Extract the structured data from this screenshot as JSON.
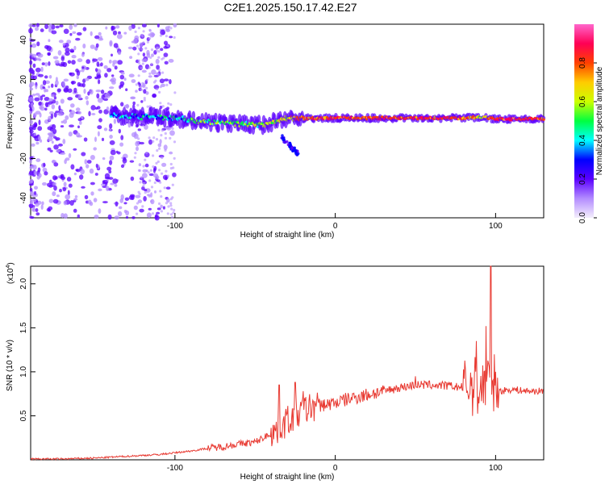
{
  "title": "C2E1.2025.150.17.42.E27",
  "chart_data": [
    {
      "type": "heatmap",
      "xlabel": "Height of straight line (km)",
      "ylabel": "Frequency (Hz)",
      "xlim": [
        -190,
        130
      ],
      "ylim": [
        -50,
        48
      ],
      "xticks": [
        -100,
        0,
        100
      ],
      "yticks": [
        -40,
        -20,
        0,
        20,
        40
      ],
      "colorbar": {
        "label": "Normalized spectral amplitude",
        "range": [
          0,
          1
        ],
        "ticks": [
          0.0,
          0.2,
          0.4,
          0.6,
          0.8
        ],
        "colormap": [
          "#f4eefc",
          "#b38cff",
          "#5b00ff",
          "#0000ff",
          "#00ffff",
          "#00ff40",
          "#ccff00",
          "#ffcc00",
          "#ff4000",
          "#ff0055",
          "#ff66cc"
        ]
      },
      "ridge": [
        {
          "x": -140,
          "f": 2.0,
          "amp": 0.45
        },
        {
          "x": -120,
          "f": 1.0,
          "amp": 0.5
        },
        {
          "x": -100,
          "f": 0.5,
          "amp": 0.55
        },
        {
          "x": -80,
          "f": -1.5,
          "amp": 0.6
        },
        {
          "x": -60,
          "f": -2.5,
          "amp": 0.65
        },
        {
          "x": -45,
          "f": -3.0,
          "amp": 0.7
        },
        {
          "x": -30,
          "f": 0.5,
          "amp": 0.75
        },
        {
          "x": -20,
          "f": 0.3,
          "amp": 0.95
        },
        {
          "x": 0,
          "f": 0.5,
          "amp": 0.95
        },
        {
          "x": 40,
          "f": 0.5,
          "amp": 0.95
        },
        {
          "x": 80,
          "f": 0.5,
          "amp": 0.95
        },
        {
          "x": 92,
          "f": 1.0,
          "amp": 0.7
        },
        {
          "x": 100,
          "f": 0.0,
          "amp": 1.0
        },
        {
          "x": 130,
          "f": 0.0,
          "amp": 0.95
        }
      ]
    },
    {
      "type": "line",
      "xlabel": "Height of straight line (km)",
      "ylabel": "SNR (10 * v/v)",
      "yscale_note": "(x10",
      "yscale_exp": "4",
      "xlim": [
        -190,
        130
      ],
      "ylim": [
        0,
        2.2
      ],
      "xticks": [
        -100,
        0,
        100
      ],
      "yticks": [
        0.5,
        1.0,
        1.5,
        2.0
      ],
      "ytick_labels": [
        "0.5",
        "1.0",
        "1.5",
        "2.0"
      ],
      "color": "#e83a32",
      "series": [
        {
          "x": [
            -190,
            -170,
            -150,
            -140,
            -130,
            -120,
            -110,
            -100,
            -90,
            -80,
            -70,
            -60,
            -50,
            -45,
            -40,
            -35,
            -30,
            -25,
            -20,
            -15,
            -10,
            -5,
            0,
            10,
            20,
            30,
            40,
            50,
            60,
            70,
            80,
            85,
            90,
            95,
            98,
            100,
            103,
            110,
            120,
            130
          ],
          "values": [
            0.01,
            0.01,
            0.02,
            0.03,
            0.04,
            0.05,
            0.06,
            0.08,
            0.1,
            0.13,
            0.15,
            0.18,
            0.2,
            0.25,
            0.3,
            0.35,
            0.45,
            0.5,
            0.55,
            0.6,
            0.62,
            0.63,
            0.65,
            0.7,
            0.74,
            0.78,
            0.82,
            0.85,
            0.85,
            0.84,
            0.82,
            0.85,
            0.8,
            0.9,
            1.0,
            0.75,
            0.78,
            0.8,
            0.78,
            0.78
          ]
        }
      ],
      "peaks": [
        {
          "x": -35,
          "v": 0.85
        },
        {
          "x": -25,
          "v": 0.88
        },
        {
          "x": -20,
          "v": 0.78
        },
        {
          "x": 50,
          "v": 0.95
        },
        {
          "x": 88,
          "v": 1.35
        },
        {
          "x": 94,
          "v": 1.52
        },
        {
          "x": 97,
          "v": 2.2
        },
        {
          "x": 100,
          "v": 1.0
        }
      ]
    }
  ]
}
